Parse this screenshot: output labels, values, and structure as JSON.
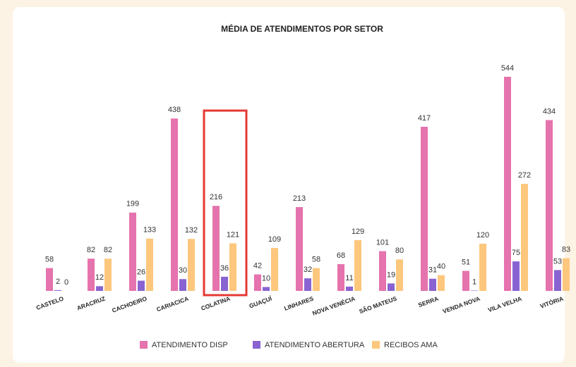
{
  "chart_data": {
    "type": "bar",
    "title": "MÉDIA DE ATENDIMENTOS POR SETOR",
    "categories": [
      "CASTELO",
      "ARACRUZ",
      "CACHOEIRO",
      "CARIACICA",
      "COLATINA",
      "GUAÇUÍ",
      "LINHARES",
      "NOVA VENÉCIA",
      "SÃO MATEUS",
      "SERRA",
      "VENDA NOVA",
      "VILA VELHA",
      "VITÓRIA"
    ],
    "series": [
      {
        "name": "ATENDIMENTO DISP",
        "color": "#e573ad",
        "values": [
          58,
          82,
          199,
          438,
          216,
          42,
          213,
          68,
          101,
          417,
          51,
          544,
          434
        ]
      },
      {
        "name": "ATENDIMENTO ABERTURA",
        "color": "#8a63d2",
        "values": [
          2,
          12,
          26,
          30,
          36,
          10,
          32,
          11,
          19,
          31,
          1,
          75,
          53
        ]
      },
      {
        "name": "RECIBOS AMA",
        "color": "#fdc77d",
        "values": [
          0,
          82,
          133,
          132,
          121,
          109,
          58,
          129,
          80,
          40,
          120,
          272,
          83
        ]
      }
    ]
  }
}
